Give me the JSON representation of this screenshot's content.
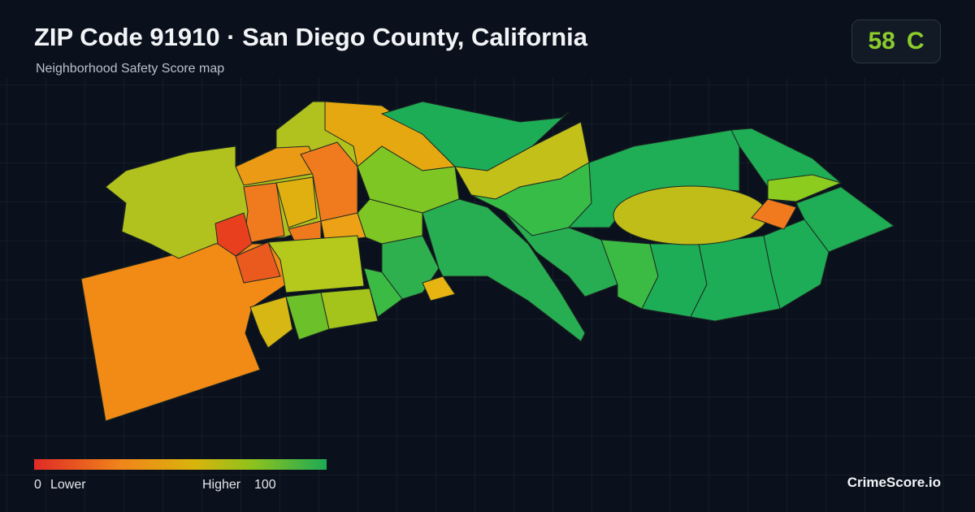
{
  "header": {
    "title": "ZIP Code 91910 · San Diego County, California",
    "subtitle": "Neighborhood Safety Score map"
  },
  "score": {
    "value": 58,
    "grade": "C"
  },
  "legend": {
    "min": 0,
    "min_label": "Lower",
    "max_label": "Higher",
    "max": 100
  },
  "brand": "CrimeScore.io"
}
